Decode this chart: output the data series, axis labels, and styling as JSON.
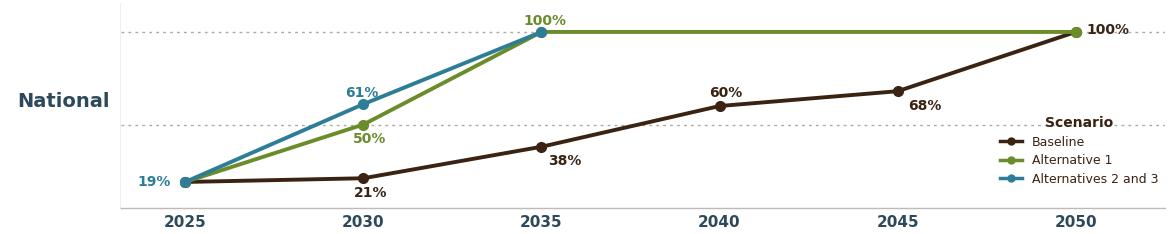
{
  "years": [
    2025,
    2030,
    2035,
    2040,
    2045,
    2050
  ],
  "baseline": {
    "x": [
      2025,
      2030,
      2035,
      2040,
      2045,
      2050
    ],
    "y": [
      19,
      21,
      38,
      60,
      68,
      100
    ],
    "color": "#3b2314",
    "linewidth": 2.8,
    "markersize": 7,
    "label": "Baseline"
  },
  "alt1": {
    "x": [
      2025,
      2030,
      2035,
      2050
    ],
    "y": [
      19,
      50,
      100,
      100
    ],
    "color": "#6b8c2a",
    "linewidth": 2.8,
    "markersize": 7,
    "label": "Alternative 1"
  },
  "alt23": {
    "x": [
      2025,
      2030,
      2035
    ],
    "y": [
      19,
      61,
      100
    ],
    "color": "#2e7d96",
    "linewidth": 2.8,
    "markersize": 7,
    "label": "Alternatives 2 and 3"
  },
  "hline_top": 100,
  "hline_mid": 50,
  "hline_color": "#aaaaaa",
  "xlim": [
    2023.2,
    2052.5
  ],
  "ylim": [
    5,
    115
  ],
  "xticks": [
    2025,
    2030,
    2035,
    2040,
    2045,
    2050
  ],
  "background_color": "#ffffff",
  "left_label": "National",
  "left_label_color": "#2d4a5c",
  "tick_label_color": "#2d4a5c",
  "legend_title": "Scenario",
  "legend_title_color": "#3b2314",
  "legend_text_color": "#3b2314",
  "annotation_baseline_color": "#3b2314",
  "annotation_alt1_color": "#6b8c2a",
  "annotation_alt23_color": "#2e7d96",
  "annotation_fontsize": 10,
  "tick_fontsize": 11
}
